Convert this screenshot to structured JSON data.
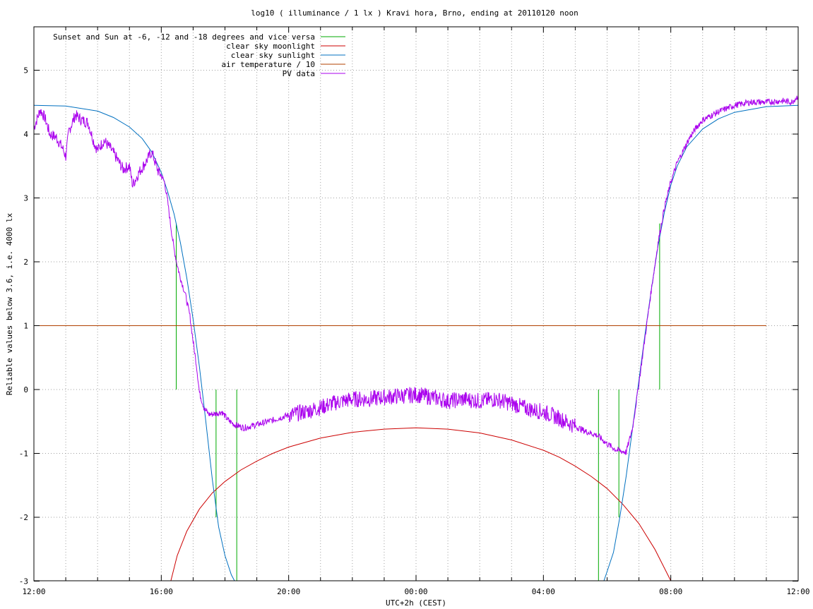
{
  "chart_data": {
    "type": "line",
    "title": "log10 ( illuminance / 1 lx ) Kravi hora, Brno, ending at 20110120 noon",
    "xlabel": "UTC+2h (CEST)",
    "ylabel": "Reliable values below 3.6, i.e. 4000 lx",
    "xlim": [
      12,
      36
    ],
    "ylim": [
      -3,
      5.7
    ],
    "x_ticks": [
      12,
      13,
      14,
      15,
      16,
      17,
      18,
      19,
      20,
      21,
      22,
      23,
      24,
      25,
      26,
      27,
      28,
      29,
      30,
      31,
      32,
      33,
      34,
      35,
      36
    ],
    "x_tick_labels": [
      {
        "x": 12,
        "label": "12:00"
      },
      {
        "x": 16,
        "label": "16:00"
      },
      {
        "x": 20,
        "label": "20:00"
      },
      {
        "x": 24,
        "label": "00:00"
      },
      {
        "x": 28,
        "label": "04:00"
      },
      {
        "x": 32,
        "label": "08:00"
      },
      {
        "x": 36,
        "label": "12:00"
      }
    ],
    "y_ticks": [
      {
        "y": 5,
        "label": "5"
      },
      {
        "y": 4,
        "label": "4"
      },
      {
        "y": 3,
        "label": "3"
      },
      {
        "y": 2,
        "label": "2"
      },
      {
        "y": 1,
        "label": "1"
      },
      {
        "y": 0,
        "label": "0"
      },
      {
        "y": -1,
        "label": "-1"
      },
      {
        "y": -2,
        "label": "-2"
      },
      {
        "y": -3,
        "label": "-3"
      }
    ],
    "grid": true,
    "legend_position": "top-left",
    "series": [
      {
        "name": "Sunset and Sun at -6, -12 and -18 degrees and vice versa",
        "color": "#00aa00",
        "kind": "impulses",
        "points": [
          [
            16.47,
            2.6
          ],
          [
            17.1,
            0
          ],
          [
            17.72,
            -2.0
          ],
          [
            18.37,
            -3.0
          ],
          [
            29.73,
            -3.0
          ],
          [
            30.37,
            -2.0
          ],
          [
            31.03,
            0
          ],
          [
            31.65,
            2.6
          ]
        ]
      },
      {
        "name": "clear sky moonlight",
        "color": "#cc0000",
        "kind": "line",
        "points": [
          [
            16.3,
            -3.0
          ],
          [
            16.5,
            -2.6
          ],
          [
            16.8,
            -2.22
          ],
          [
            17.2,
            -1.87
          ],
          [
            17.6,
            -1.62
          ],
          [
            18.0,
            -1.44
          ],
          [
            18.5,
            -1.26
          ],
          [
            19.0,
            -1.12
          ],
          [
            19.5,
            -1.0
          ],
          [
            20.0,
            -0.9
          ],
          [
            21.0,
            -0.76
          ],
          [
            22.0,
            -0.67
          ],
          [
            23.0,
            -0.62
          ],
          [
            24.0,
            -0.6
          ],
          [
            25.0,
            -0.62
          ],
          [
            26.0,
            -0.68
          ],
          [
            27.0,
            -0.79
          ],
          [
            28.0,
            -0.95
          ],
          [
            28.5,
            -1.06
          ],
          [
            29.0,
            -1.2
          ],
          [
            29.5,
            -1.36
          ],
          [
            30.0,
            -1.55
          ],
          [
            30.5,
            -1.8
          ],
          [
            31.0,
            -2.1
          ],
          [
            31.5,
            -2.5
          ],
          [
            32.0,
            -3.0
          ]
        ]
      },
      {
        "name": "clear sky sunlight",
        "color": "#0070c0",
        "kind": "line",
        "points": [
          [
            12.0,
            4.45
          ],
          [
            13.0,
            4.44
          ],
          [
            14.0,
            4.36
          ],
          [
            14.5,
            4.26
          ],
          [
            15.0,
            4.11
          ],
          [
            15.4,
            3.93
          ],
          [
            15.7,
            3.72
          ],
          [
            16.0,
            3.4
          ],
          [
            16.2,
            3.1
          ],
          [
            16.4,
            2.75
          ],
          [
            16.6,
            2.3
          ],
          [
            16.8,
            1.75
          ],
          [
            17.0,
            1.1
          ],
          [
            17.2,
            0.35
          ],
          [
            17.4,
            -0.5
          ],
          [
            17.6,
            -1.4
          ],
          [
            17.8,
            -2.15
          ],
          [
            18.0,
            -2.6
          ],
          [
            18.2,
            -2.9
          ],
          [
            18.3,
            -3.0
          ],
          [
            29.9,
            -3.0
          ],
          [
            30.0,
            -2.85
          ],
          [
            30.2,
            -2.55
          ],
          [
            30.4,
            -2.0
          ],
          [
            30.6,
            -1.35
          ],
          [
            30.8,
            -0.6
          ],
          [
            31.0,
            0.15
          ],
          [
            31.2,
            0.9
          ],
          [
            31.4,
            1.6
          ],
          [
            31.6,
            2.25
          ],
          [
            31.8,
            2.78
          ],
          [
            32.0,
            3.2
          ],
          [
            32.2,
            3.5
          ],
          [
            32.5,
            3.8
          ],
          [
            33.0,
            4.08
          ],
          [
            33.5,
            4.24
          ],
          [
            34.0,
            4.34
          ],
          [
            35.0,
            4.43
          ],
          [
            36.0,
            4.45
          ]
        ]
      },
      {
        "name": "air temperature / 10",
        "color": "#b04000",
        "kind": "line",
        "points": [
          [
            12.0,
            1.0
          ],
          [
            35.0,
            1.0
          ]
        ]
      },
      {
        "name": "PV data",
        "color": "#aa00ee",
        "kind": "line",
        "noise": true,
        "points": [
          [
            12.0,
            4.1
          ],
          [
            12.2,
            4.38
          ],
          [
            12.35,
            4.25
          ],
          [
            12.5,
            4.0
          ],
          [
            12.7,
            3.95
          ],
          [
            12.9,
            3.78
          ],
          [
            13.0,
            3.65
          ],
          [
            13.1,
            4.05
          ],
          [
            13.3,
            4.3
          ],
          [
            13.5,
            4.22
          ],
          [
            13.7,
            4.18
          ],
          [
            13.9,
            3.85
          ],
          [
            14.0,
            3.75
          ],
          [
            14.2,
            3.9
          ],
          [
            14.4,
            3.78
          ],
          [
            14.6,
            3.62
          ],
          [
            14.8,
            3.45
          ],
          [
            15.0,
            3.5
          ],
          [
            15.1,
            3.2
          ],
          [
            15.3,
            3.4
          ],
          [
            15.5,
            3.55
          ],
          [
            15.7,
            3.72
          ],
          [
            15.9,
            3.42
          ],
          [
            16.0,
            3.35
          ],
          [
            16.1,
            3.25
          ],
          [
            16.2,
            2.95
          ],
          [
            16.3,
            2.55
          ],
          [
            16.4,
            2.2
          ],
          [
            16.5,
            1.95
          ],
          [
            16.6,
            1.75
          ],
          [
            16.75,
            1.5
          ],
          [
            16.9,
            1.15
          ],
          [
            17.0,
            0.75
          ],
          [
            17.1,
            0.4
          ],
          [
            17.2,
            -0.05
          ],
          [
            17.35,
            -0.3
          ],
          [
            17.5,
            -0.39
          ],
          [
            17.7,
            -0.38
          ],
          [
            17.9,
            -0.35
          ],
          [
            18.1,
            -0.48
          ],
          [
            18.3,
            -0.55
          ],
          [
            18.6,
            -0.6
          ],
          [
            19.0,
            -0.55
          ],
          [
            19.5,
            -0.48
          ],
          [
            20.0,
            -0.4
          ],
          [
            20.5,
            -0.35
          ],
          [
            21.0,
            -0.28
          ],
          [
            21.5,
            -0.2
          ],
          [
            22.0,
            -0.15
          ],
          [
            22.5,
            -0.15
          ],
          [
            23.0,
            -0.12
          ],
          [
            23.5,
            -0.1
          ],
          [
            24.0,
            -0.08
          ],
          [
            24.5,
            -0.12
          ],
          [
            25.0,
            -0.18
          ],
          [
            25.5,
            -0.15
          ],
          [
            26.0,
            -0.18
          ],
          [
            26.5,
            -0.15
          ],
          [
            27.0,
            -0.22
          ],
          [
            27.5,
            -0.3
          ],
          [
            28.0,
            -0.35
          ],
          [
            28.5,
            -0.45
          ],
          [
            28.9,
            -0.55
          ],
          [
            29.3,
            -0.65
          ],
          [
            29.7,
            -0.72
          ],
          [
            30.0,
            -0.85
          ],
          [
            30.3,
            -0.95
          ],
          [
            30.6,
            -0.98
          ],
          [
            30.8,
            -0.6
          ],
          [
            31.0,
            0.1
          ],
          [
            31.2,
            0.85
          ],
          [
            31.4,
            1.6
          ],
          [
            31.6,
            2.3
          ],
          [
            31.8,
            2.85
          ],
          [
            32.0,
            3.25
          ],
          [
            32.2,
            3.55
          ],
          [
            32.4,
            3.75
          ],
          [
            32.6,
            3.95
          ],
          [
            32.8,
            4.1
          ],
          [
            33.0,
            4.22
          ],
          [
            33.5,
            4.35
          ],
          [
            34.0,
            4.45
          ],
          [
            34.5,
            4.5
          ],
          [
            35.0,
            4.5
          ],
          [
            35.5,
            4.52
          ],
          [
            35.8,
            4.5
          ],
          [
            36.0,
            4.6
          ]
        ]
      }
    ]
  }
}
